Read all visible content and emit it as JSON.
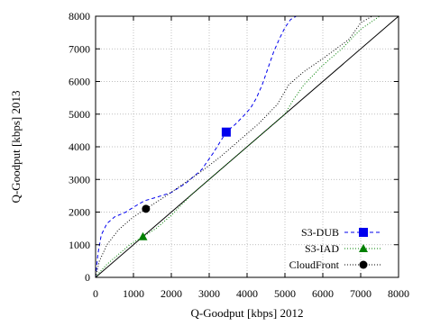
{
  "chart_data": {
    "type": "line",
    "title": "",
    "xlabel": "Q-Goodput [kbps] 2012",
    "ylabel": "Q-Goodput [kbps] 2013",
    "xlim": [
      0,
      8000
    ],
    "ylim": [
      0,
      8000
    ],
    "xticks": [
      0,
      1000,
      2000,
      3000,
      4000,
      5000,
      6000,
      7000,
      8000
    ],
    "yticks": [
      0,
      1000,
      2000,
      3000,
      4000,
      5000,
      6000,
      7000,
      8000
    ],
    "xtick_labels": [
      "0",
      "1000",
      "2000",
      "3000",
      "4000",
      "5000",
      "6000",
      "7000",
      "8000"
    ],
    "ytick_labels": [
      "0",
      "1000",
      "2000",
      "3000",
      "4000",
      "5000",
      "6000",
      "7000",
      "8000"
    ],
    "grid": true,
    "legend_position": "bottom-right",
    "diagonal": {
      "x": [
        0,
        8000
      ],
      "y": [
        0,
        8000
      ],
      "color": "#000000"
    },
    "series": [
      {
        "name": "S3-DUB",
        "color": "#0000ee",
        "style": "dashed",
        "marker": "square",
        "marker_point": [
          3450,
          4450
        ],
        "x": [
          0,
          60,
          150,
          300,
          500,
          800,
          1000,
          1300,
          1600,
          2000,
          2400,
          2800,
          3100,
          3450,
          3700,
          3950,
          4100,
          4250,
          4400,
          4550,
          4700,
          4850,
          5000,
          5150,
          5300
        ],
        "y": [
          0,
          700,
          1300,
          1650,
          1850,
          2000,
          2150,
          2350,
          2450,
          2600,
          2900,
          3300,
          3800,
          4450,
          4700,
          5000,
          5200,
          5500,
          5900,
          6400,
          6900,
          7300,
          7650,
          7900,
          8000
        ]
      },
      {
        "name": "S3-IAD",
        "color": "#008000",
        "style": "dotted",
        "marker": "triangle",
        "marker_point": [
          1250,
          1250
        ],
        "x": [
          0,
          100,
          300,
          600,
          900,
          1250,
          1600,
          2000,
          2500,
          3000,
          3500,
          4000,
          4500,
          5000,
          5200,
          5500,
          6000,
          6500,
          7000,
          7500
        ],
        "y": [
          0,
          150,
          400,
          700,
          1000,
          1250,
          1500,
          1900,
          2500,
          3000,
          3500,
          4000,
          4500,
          5000,
          5400,
          5900,
          6500,
          7000,
          7600,
          8000
        ]
      },
      {
        "name": "CloudFront",
        "color": "#000000",
        "style": "dotted",
        "marker": "circle",
        "marker_point": [
          1330,
          2100
        ],
        "x": [
          0,
          100,
          300,
          600,
          1000,
          1330,
          1800,
          2300,
          2800,
          3300,
          3800,
          4300,
          4800,
          5100,
          5500,
          6000,
          6700,
          7000,
          7300
        ],
        "y": [
          0,
          500,
          1000,
          1450,
          1850,
          2100,
          2450,
          2850,
          3250,
          3700,
          4200,
          4700,
          5300,
          5900,
          6300,
          6700,
          7300,
          7800,
          8000
        ]
      }
    ]
  }
}
